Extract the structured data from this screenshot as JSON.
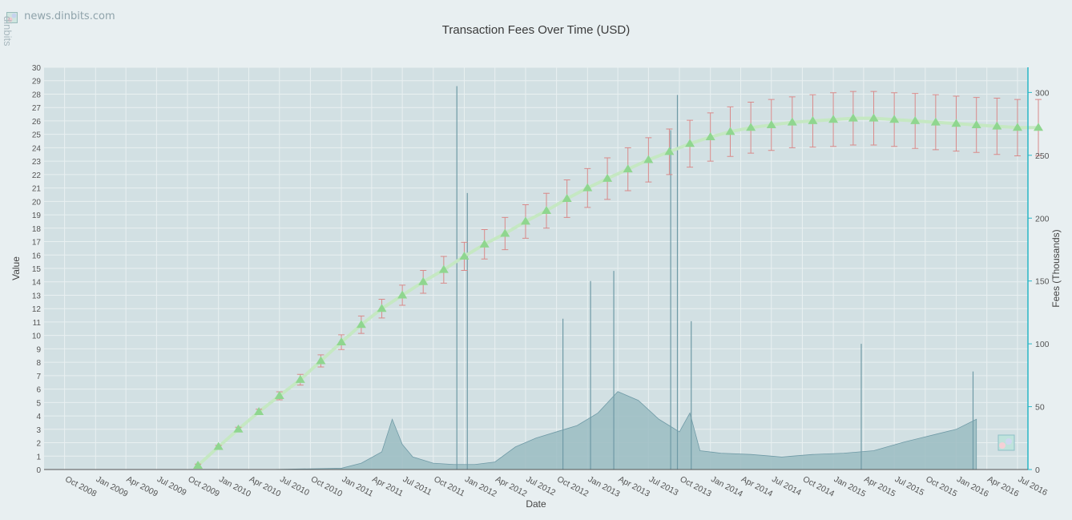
{
  "watermark": {
    "url": "news.dinbits.com",
    "brand": "dinbits"
  },
  "chart_data": {
    "type": "line",
    "title": "Transaction Fees Over Time (USD)",
    "xlabel": "Date",
    "ylabel": "Value",
    "ylabel_right": "Fees (Thousands)",
    "x_ticks": [
      "Oct 2008",
      "Jan 2009",
      "Apr 2009",
      "Jul 2009",
      "Oct 2009",
      "Jan 2010",
      "Apr 2010",
      "Jul 2010",
      "Oct 2010",
      "Jan 2011",
      "Apr 2011",
      "Jul 2011",
      "Oct 2011",
      "Jan 2012",
      "Apr 2012",
      "Jul 2012",
      "Oct 2012",
      "Jan 2013",
      "Apr 2013",
      "Jul 2013",
      "Oct 2013",
      "Jan 2014",
      "Apr 2014",
      "Jul 2014",
      "Oct 2014",
      "Jan 2015",
      "Apr 2015",
      "Jul 2015",
      "Oct 2015",
      "Jan 2016",
      "Apr 2016",
      "Jul 2016"
    ],
    "xlim": [
      "2008-08",
      "2016-08"
    ],
    "ylim_left": [
      0,
      30
    ],
    "y_ticks_left": [
      0,
      1,
      2,
      3,
      4,
      5,
      6,
      7,
      8,
      9,
      10,
      11,
      12,
      13,
      14,
      15,
      16,
      17,
      18,
      19,
      20,
      21,
      22,
      23,
      24,
      25,
      26,
      27,
      28,
      29,
      30
    ],
    "ylim_right": [
      0,
      320
    ],
    "y_ticks_right": [
      0,
      50,
      100,
      150,
      200,
      250,
      300
    ],
    "grid": true,
    "colors": {
      "trend": "#8fd68f",
      "trend_line": "#c5e8c2",
      "error_bars": "#d98a8a",
      "fees_fill": "#9bbcc2",
      "fees_line": "#6f9aa6",
      "right_axis": "#29b6c6",
      "plot_bg": "#d2e0e3"
    },
    "series": [
      {
        "type": "line",
        "marker": "triangle",
        "axis": "left",
        "x": [
          "2009-11-01",
          "2010-01-01",
          "2010-03-01",
          "2010-05-01",
          "2010-07-01",
          "2010-09-01",
          "2010-11-01",
          "2011-01-01",
          "2011-03-01",
          "2011-05-01",
          "2011-07-01",
          "2011-09-01",
          "2011-11-01",
          "2012-01-01",
          "2012-03-01",
          "2012-05-01",
          "2012-07-01",
          "2012-09-01",
          "2012-11-01",
          "2013-01-01",
          "2013-03-01",
          "2013-05-01",
          "2013-07-01",
          "2013-09-01",
          "2013-11-01",
          "2014-01-01",
          "2014-03-01",
          "2014-05-01",
          "2014-07-01",
          "2014-09-01",
          "2014-11-01",
          "2015-01-01",
          "2015-03-01",
          "2015-05-01",
          "2015-07-01",
          "2015-09-01",
          "2015-11-01",
          "2016-01-01",
          "2016-03-01",
          "2016-05-01",
          "2016-07-01",
          "2016-09-01"
        ],
        "y": [
          0.3,
          1.7,
          3.0,
          4.3,
          5.5,
          6.7,
          8.1,
          9.5,
          10.8,
          12.0,
          13.0,
          14.0,
          14.9,
          15.9,
          16.8,
          17.6,
          18.5,
          19.3,
          20.2,
          21.0,
          21.7,
          22.4,
          23.1,
          23.7,
          24.3,
          24.8,
          25.2,
          25.5,
          25.7,
          25.9,
          26.0,
          26.1,
          26.2,
          26.2,
          26.1,
          26.0,
          25.9,
          25.8,
          25.7,
          25.6,
          25.5,
          25.5
        ],
        "error": [
          0.1,
          0.1,
          0.15,
          0.2,
          0.3,
          0.4,
          0.45,
          0.55,
          0.65,
          0.7,
          0.75,
          0.85,
          1.0,
          1.05,
          1.1,
          1.2,
          1.25,
          1.3,
          1.4,
          1.45,
          1.55,
          1.6,
          1.65,
          1.7,
          1.75,
          1.8,
          1.85,
          1.9,
          1.9,
          1.9,
          1.95,
          2.0,
          2.0,
          2.0,
          2.0,
          2.05,
          2.05,
          2.05,
          2.05,
          2.1,
          2.1,
          2.1
        ]
      },
      {
        "type": "area",
        "axis": "right",
        "note_key": "fees",
        "x": [
          "2009-01-01",
          "2010-06-01",
          "2011-01-01",
          "2011-03-01",
          "2011-05-01",
          "2011-06-01",
          "2011-07-01",
          "2011-08-01",
          "2011-10-01",
          "2011-12-01",
          "2012-02-01",
          "2012-04-01",
          "2012-06-01",
          "2012-08-01",
          "2012-10-01",
          "2012-12-01",
          "2013-02-01",
          "2013-04-01",
          "2013-06-01",
          "2013-08-01",
          "2013-10-01",
          "2013-11-01",
          "2013-12-01",
          "2014-02-01",
          "2014-05-01",
          "2014-08-01",
          "2014-11-01",
          "2015-02-01",
          "2015-05-01",
          "2015-08-01",
          "2015-11-01",
          "2016-01-01",
          "2016-03-01"
        ],
        "y": [
          0,
          0,
          1,
          5,
          14,
          40,
          20,
          10,
          5,
          4,
          4,
          6,
          18,
          25,
          30,
          35,
          45,
          62,
          55,
          40,
          30,
          45,
          15,
          13,
          12,
          10,
          12,
          13,
          15,
          22,
          28,
          32,
          40
        ],
        "spikes": [
          {
            "x": "2011-12-10",
            "y": 305
          },
          {
            "x": "2012-01-10",
            "y": 220
          },
          {
            "x": "2012-10-20",
            "y": 120
          },
          {
            "x": "2013-01-10",
            "y": 150
          },
          {
            "x": "2013-03-20",
            "y": 158
          },
          {
            "x": "2013-09-05",
            "y": 270
          },
          {
            "x": "2013-09-25",
            "y": 298
          },
          {
            "x": "2013-11-05",
            "y": 118
          },
          {
            "x": "2015-03-25",
            "y": 100
          },
          {
            "x": "2016-02-20",
            "y": 78
          }
        ]
      }
    ]
  }
}
